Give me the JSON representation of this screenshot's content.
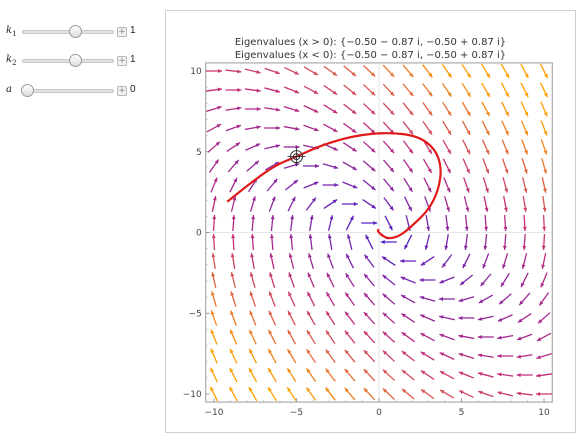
{
  "controls": {
    "k1": {
      "label_base": "k",
      "label_sub": "1",
      "value": "1",
      "slider_fraction": 0.6
    },
    "k2": {
      "label_base": "k",
      "label_sub": "2",
      "value": "1",
      "slider_fraction": 0.6
    },
    "a": {
      "label": "a",
      "value": "0",
      "slider_fraction": 0.0
    }
  },
  "plot": {
    "title_line1": "Eigenvalues (x > 0): {−0.50 − 0.87 i, −0.50 + 0.87 i}",
    "title_line2": "Eigenvalues (x < 0): {−0.50 − 0.87 i, −0.50 + 0.87 i}",
    "colors": {
      "trajectory": "#e0191b",
      "arrow_low": "#4b1fc9",
      "arrow_high": "#ff9f00",
      "axes": "#888888"
    },
    "start_point": {
      "x": -5,
      "y": 4.7
    }
  },
  "chart_data": {
    "type": "vector_field",
    "xlim": [
      -10.5,
      10.5
    ],
    "ylim": [
      -10.5,
      10.5
    ],
    "x_ticks": [
      "−10",
      "−5",
      "0",
      "5",
      "10"
    ],
    "y_ticks": [
      "−10",
      "−5",
      "0",
      "5",
      "10"
    ],
    "field": "dx/dt = y, dy/dt = -x - y",
    "trajectory_points": [
      [
        -9.2,
        1.9
      ],
      [
        -7.5,
        3.3
      ],
      [
        -6.2,
        4.2
      ],
      [
        -5.0,
        4.7
      ],
      [
        -3.5,
        5.4
      ],
      [
        -1.5,
        6.0
      ],
      [
        0.5,
        6.2
      ],
      [
        2.3,
        6.0
      ],
      [
        3.4,
        5.2
      ],
      [
        3.8,
        4.0
      ],
      [
        3.6,
        2.6
      ],
      [
        3.0,
        1.4
      ],
      [
        2.1,
        0.5
      ],
      [
        1.3,
        -0.2
      ],
      [
        0.6,
        -0.4
      ],
      [
        0.2,
        -0.2
      ],
      [
        -0.1,
        0.1
      ],
      [
        0.0,
        0.2
      ]
    ]
  }
}
